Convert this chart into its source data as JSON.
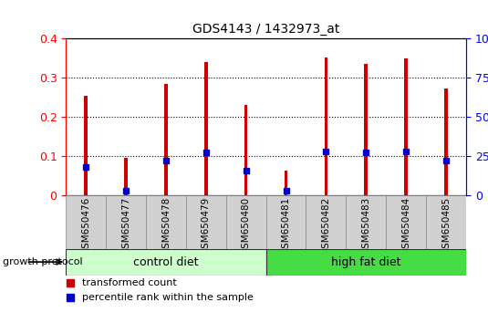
{
  "title": "GDS4143 / 1432973_at",
  "samples": [
    "GSM650476",
    "GSM650477",
    "GSM650478",
    "GSM650479",
    "GSM650480",
    "GSM650481",
    "GSM650482",
    "GSM650483",
    "GSM650484",
    "GSM650485"
  ],
  "red_values": [
    0.255,
    0.097,
    0.285,
    0.34,
    0.232,
    0.063,
    0.352,
    0.337,
    0.35,
    0.272
  ],
  "blue_values": [
    0.073,
    0.012,
    0.088,
    0.11,
    0.063,
    0.012,
    0.112,
    0.11,
    0.112,
    0.088
  ],
  "ylim": [
    0,
    0.4
  ],
  "yticks_left": [
    0,
    0.1,
    0.2,
    0.3,
    0.4
  ],
  "groups": [
    {
      "label": "control diet",
      "start": 0,
      "end": 5,
      "color": "#ccffcc"
    },
    {
      "label": "high fat diet",
      "start": 5,
      "end": 10,
      "color": "#44dd44"
    }
  ],
  "group_label": "growth protocol",
  "bar_color": "#cc0000",
  "marker_color": "#0000cc",
  "cell_bg": "#d0d0d0",
  "legend_red": "transformed count",
  "legend_blue": "percentile rank within the sample",
  "bar_width": 0.08
}
